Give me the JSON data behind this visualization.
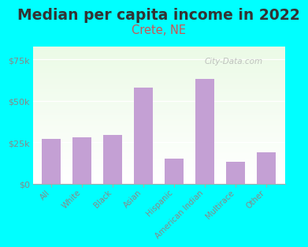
{
  "title": "Median per capita income in 2022",
  "subtitle": "Crete, NE",
  "categories": [
    "All",
    "White",
    "Black",
    "Asian",
    "Hispanic",
    "American Indian",
    "Multirace",
    "Other"
  ],
  "values": [
    27000,
    28000,
    29500,
    58000,
    15000,
    63000,
    13000,
    19000
  ],
  "bar_color": "#c4a0d4",
  "background_outer": "#00FFFF",
  "title_color": "#333333",
  "subtitle_color": "#cc5555",
  "tick_color": "#888888",
  "ylim": [
    0,
    83000
  ],
  "watermark": "City-Data.com",
  "title_fontsize": 13.5,
  "subtitle_fontsize": 10.5,
  "ytick_vals": [
    0,
    25000,
    50000,
    75000
  ]
}
